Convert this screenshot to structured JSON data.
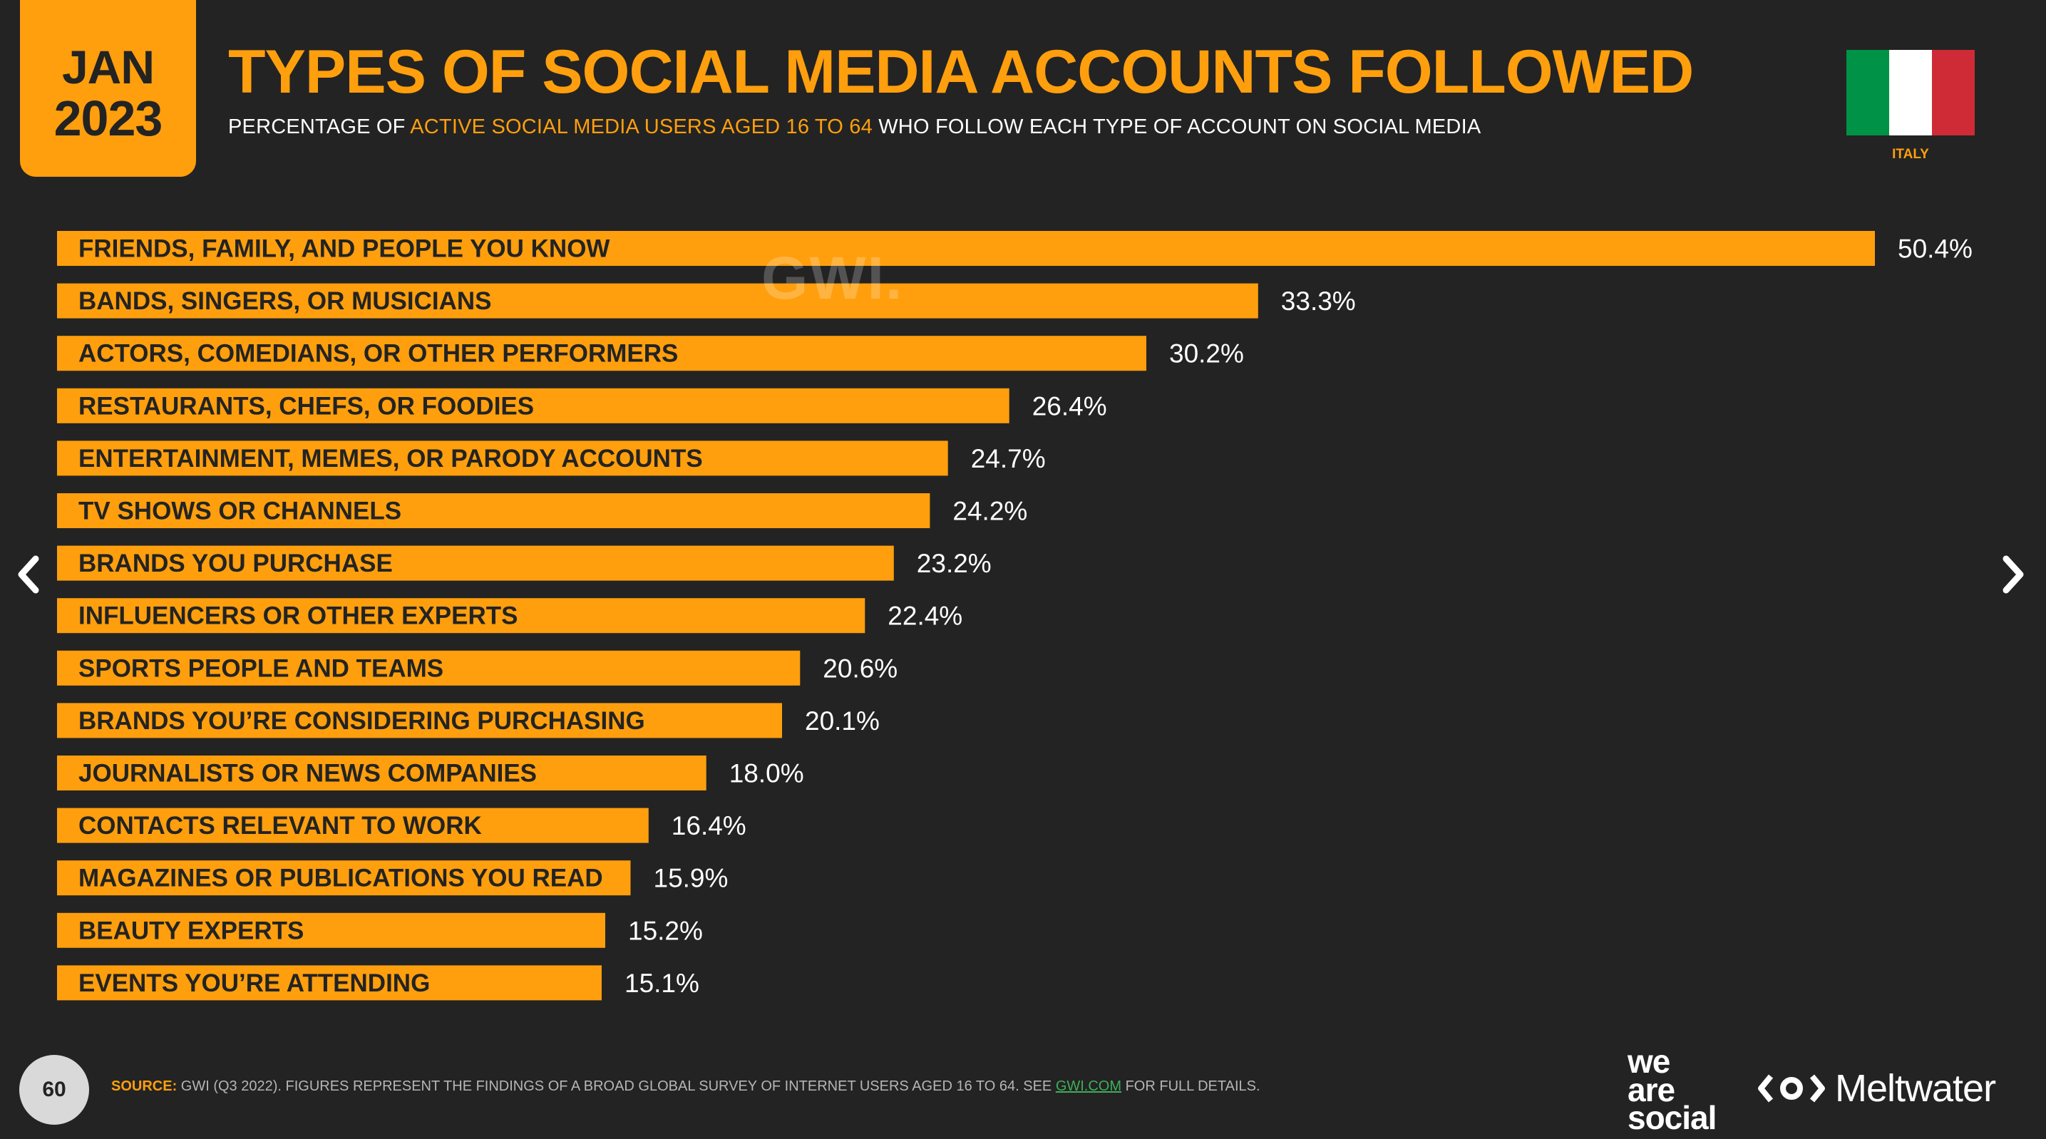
{
  "header": {
    "date_month": "JAN",
    "date_year": "2023",
    "title": "TYPES OF SOCIAL MEDIA ACCOUNTS FOLLOWED",
    "subtitle_pre": "PERCENTAGE OF ",
    "subtitle_highlight": "ACTIVE SOCIAL MEDIA USERS AGED 16 TO 64",
    "subtitle_post": " WHO FOLLOW EACH TYPE OF ACCOUNT ON SOCIAL MEDIA",
    "country": "ITALY",
    "flag_colors": [
      "#009246",
      "#ffffff",
      "#ce2b37"
    ]
  },
  "watermark": "GWI.",
  "colors": {
    "accent": "#ff9f0d",
    "background": "#232323",
    "link": "#3fae5a"
  },
  "chart_data": {
    "type": "bar",
    "orientation": "horizontal",
    "categories": [
      "FRIENDS, FAMILY, AND PEOPLE YOU KNOW",
      "BANDS, SINGERS, OR MUSICIANS",
      "ACTORS, COMEDIANS, OR OTHER PERFORMERS",
      "RESTAURANTS, CHEFS, OR FOODIES",
      "ENTERTAINMENT, MEMES, OR PARODY ACCOUNTS",
      "TV SHOWS OR CHANNELS",
      "BRANDS YOU PURCHASE",
      "INFLUENCERS OR OTHER EXPERTS",
      "SPORTS PEOPLE AND TEAMS",
      "BRANDS YOU’RE CONSIDERING PURCHASING",
      "JOURNALISTS OR NEWS COMPANIES",
      "CONTACTS RELEVANT TO WORK",
      "MAGAZINES OR PUBLICATIONS YOU READ",
      "BEAUTY EXPERTS",
      "EVENTS YOU’RE ATTENDING"
    ],
    "values": [
      50.4,
      33.3,
      30.2,
      26.4,
      24.7,
      24.2,
      23.2,
      22.4,
      20.6,
      20.1,
      18.0,
      16.4,
      15.9,
      15.2,
      15.1
    ],
    "value_labels": [
      "50.4%",
      "33.3%",
      "30.2%",
      "26.4%",
      "24.7%",
      "24.2%",
      "23.2%",
      "22.4%",
      "20.6%",
      "20.1%",
      "18.0%",
      "16.4%",
      "15.9%",
      "15.2%",
      "15.1%"
    ],
    "unit": "%",
    "bar_color": "#ff9f0d",
    "grid": false,
    "legend": "none"
  },
  "footer": {
    "page_number": "60",
    "source_label": "SOURCE:",
    "source_text": " GWI (Q3 2022). FIGURES REPRESENT THE FINDINGS OF A BROAD GLOBAL SURVEY OF INTERNET USERS AGED 16 TO 64. SEE ",
    "source_link": "GWI.COM",
    "source_end": " FOR FULL DETAILS.",
    "logo_we": "we",
    "logo_are": "are",
    "logo_social": "social",
    "logo_meltwater": "Meltwater"
  },
  "nav": {
    "prev_icon": "chevron-left-icon",
    "next_icon": "chevron-right-icon"
  }
}
